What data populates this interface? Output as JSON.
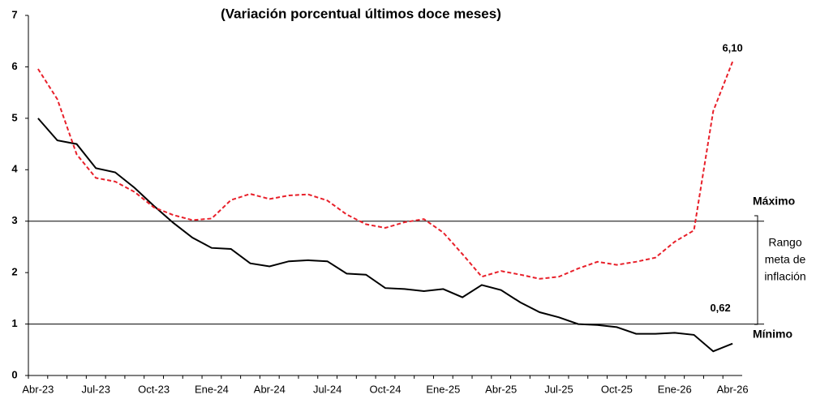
{
  "chart_data": {
    "type": "line",
    "title": "(Variación porcentual últimos doce meses)",
    "categories": [
      "Abr-23",
      null,
      null,
      "Jul-23",
      null,
      null,
      "Oct-23",
      null,
      null,
      "Ene-24",
      null,
      null,
      "Abr-24",
      null,
      null,
      "Jul-24",
      null,
      null,
      "Oct-24",
      null,
      null,
      "Ene-25",
      null,
      null,
      "Abr-25",
      null,
      null,
      "Jul-25",
      null,
      null,
      "Oct-25",
      null,
      null,
      "Ene-26",
      null,
      null,
      "Abr-26"
    ],
    "series": [
      {
        "color": "#000000",
        "dashed": false,
        "values": [
          5.0,
          4.57,
          4.5,
          4.03,
          3.95,
          3.65,
          3.3,
          2.97,
          2.68,
          2.48,
          2.46,
          2.18,
          2.12,
          2.22,
          2.24,
          2.22,
          1.98,
          1.96,
          1.7,
          1.68,
          1.64,
          1.68,
          1.52,
          1.76,
          1.66,
          1.42,
          1.23,
          1.13,
          1.0,
          0.98,
          0.94,
          0.81,
          0.81,
          0.83,
          0.79,
          0.47,
          0.62
        ],
        "value_labels": [
          null,
          null,
          null,
          null,
          null,
          null,
          null,
          null,
          null,
          null,
          null,
          null,
          null,
          null,
          null,
          null,
          null,
          null,
          null,
          null,
          null,
          null,
          null,
          null,
          null,
          null,
          null,
          null,
          null,
          null,
          null,
          null,
          null,
          null,
          null,
          null,
          "0,62"
        ]
      },
      {
        "color": "#e8202a",
        "dashed": true,
        "values": [
          5.96,
          5.37,
          4.3,
          3.84,
          3.77,
          3.57,
          3.27,
          3.12,
          3.02,
          3.05,
          3.41,
          3.53,
          3.43,
          3.5,
          3.52,
          3.4,
          3.13,
          2.94,
          2.87,
          2.98,
          3.04,
          2.78,
          2.36,
          1.92,
          2.03,
          1.96,
          1.88,
          1.92,
          2.08,
          2.21,
          2.15,
          2.21,
          2.29,
          2.6,
          2.82,
          5.14,
          6.1
        ],
        "value_labels": [
          null,
          null,
          null,
          null,
          null,
          null,
          null,
          null,
          null,
          null,
          null,
          null,
          null,
          null,
          null,
          null,
          null,
          null,
          null,
          null,
          null,
          null,
          null,
          null,
          null,
          null,
          null,
          null,
          null,
          null,
          null,
          null,
          null,
          null,
          null,
          null,
          "6,10"
        ]
      }
    ],
    "ylim": [
      0,
      7
    ],
    "yticks": [
      0,
      1,
      2,
      3,
      4,
      5,
      6,
      7
    ],
    "grid": false,
    "reference_lines": [
      {
        "value": 3,
        "label": "Máximo"
      },
      {
        "value": 1,
        "label": "Mínimo"
      }
    ],
    "range_label": [
      "Rango",
      "meta de",
      "inflación"
    ]
  }
}
